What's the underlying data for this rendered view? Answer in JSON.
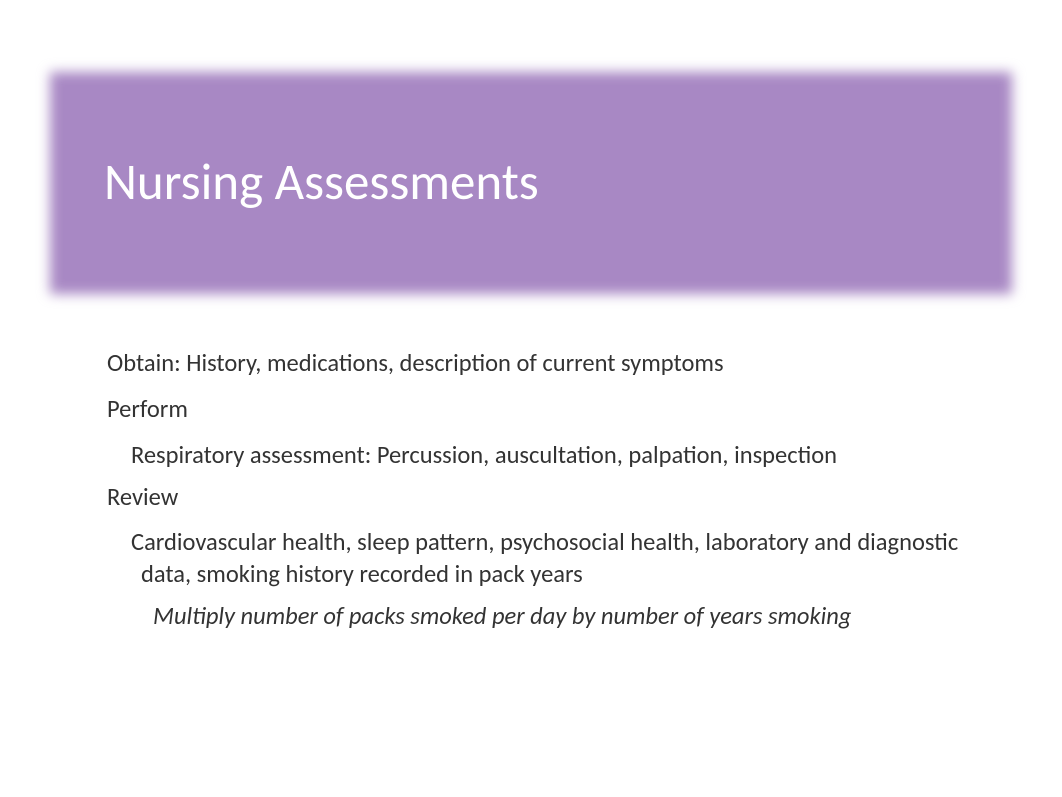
{
  "slide": {
    "title": "Nursing Assessments",
    "title_bar_color": "#a888c4",
    "title_text_color": "#ffffff",
    "title_fontsize": 51,
    "background_color": "#ffffff",
    "body_text_color": "#333333",
    "body_fontsize": 24.5,
    "content": {
      "line1": "Obtain: History, medications, description of current symptoms",
      "line2": "Perform",
      "line3": " Respiratory assessment: Percussion, auscultation, palpation, inspection",
      "line4": "Review",
      "line5": " Cardiovascular health, sleep pattern, psychosocial health, laboratory and diagnostic data, smoking history recorded in pack years",
      "line6": "Multiply number of packs smoked per day by number of years smoking"
    }
  }
}
